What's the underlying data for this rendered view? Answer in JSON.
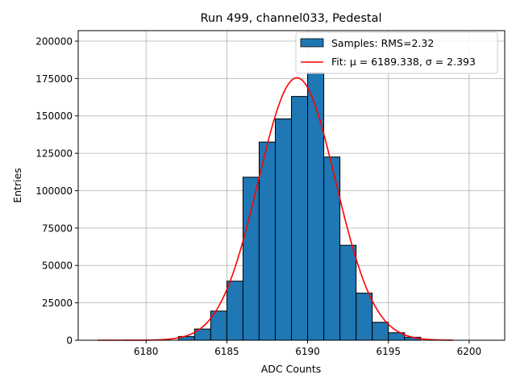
{
  "chart_data": {
    "type": "bar",
    "title": "Run 499, channel033, Pedestal",
    "xlabel": "ADC Counts",
    "ylabel": "Entries",
    "xlim": [
      6175.8,
      6202.2
    ],
    "ylim": [
      0,
      207000
    ],
    "xticks": [
      6180,
      6185,
      6190,
      6195,
      6200
    ],
    "yticks": [
      0,
      25000,
      50000,
      75000,
      100000,
      125000,
      150000,
      175000,
      200000
    ],
    "grid": true,
    "legend_position": "top-right",
    "bins": {
      "edges": [
        6182,
        6183,
        6184,
        6185,
        6186,
        6187,
        6188,
        6189,
        6190,
        6191,
        6192,
        6193,
        6194,
        6195,
        6196,
        6197
      ],
      "counts": [
        2500,
        7500,
        19500,
        39500,
        109000,
        132500,
        148000,
        163000,
        179000,
        122500,
        63500,
        31500,
        12000,
        5000,
        2000
      ]
    },
    "fit": {
      "mu": 6189.338,
      "sigma": 2.393,
      "amplitude": 175500,
      "x_range": [
        6177,
        6199
      ]
    },
    "series": [
      {
        "name": "Samples: RMS=2.32",
        "color": "#1f77b4",
        "edgecolor": "#000000",
        "kind": "histogram"
      },
      {
        "name": "Fit: μ = 6189.338, σ = 2.393",
        "color": "#ff0000",
        "kind": "line"
      }
    ]
  }
}
